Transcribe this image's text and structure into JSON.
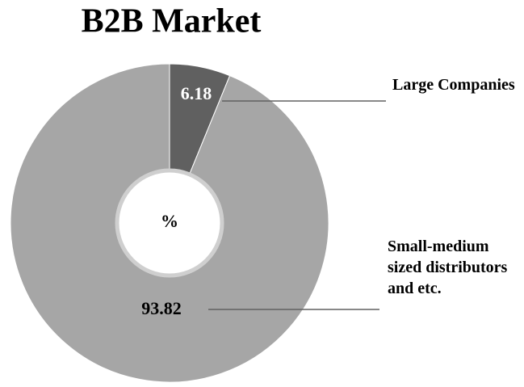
{
  "chart_data": {
    "type": "donut",
    "title": "B2B Market",
    "center_label": "%",
    "categories": [
      "Large Companies",
      "Small-medium sized distributors and etc."
    ],
    "values": [
      6.18,
      93.82
    ],
    "colors": [
      "#606060",
      "#a6a6a6"
    ]
  }
}
